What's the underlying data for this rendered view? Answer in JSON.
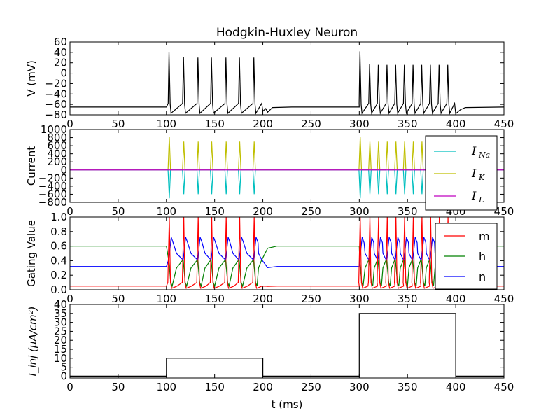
{
  "chart_data": [
    {
      "type": "line",
      "panel": "voltage",
      "title": "Hodgkin-Huxley Neuron",
      "ylabel": "V (mV)",
      "xlabel": "",
      "xlim": [
        0,
        450
      ],
      "ylim": [
        -80,
        60
      ],
      "xticks": [
        "0",
        "50",
        "100",
        "150",
        "200",
        "250",
        "300",
        "350",
        "400",
        "450"
      ],
      "yticks": [
        "60",
        "40",
        "20",
        "0",
        "−20",
        "−40",
        "−60",
        "−80"
      ],
      "grid": false,
      "series": [
        {
          "color": "#000000",
          "resting": -65,
          "spike_peak": 40,
          "after_hyper": -77,
          "spike_times_1": [
            103,
            118,
            133,
            147,
            162,
            176,
            191
          ],
          "spike_peaks_1": [
            40,
            31,
            30,
            30,
            30,
            30,
            30
          ],
          "spike_times_2": [
            301,
            311,
            320,
            329,
            338,
            347,
            356,
            365,
            374,
            383,
            392
          ],
          "spike_peaks_2": [
            42,
            18,
            16,
            16,
            16,
            16,
            16,
            16,
            16,
            16,
            16
          ]
        }
      ]
    },
    {
      "type": "line",
      "panel": "current",
      "ylabel": "Current",
      "xlabel": "",
      "xlim": [
        0,
        450
      ],
      "ylim": [
        -800,
        1000
      ],
      "xticks": [
        "0",
        "50",
        "100",
        "150",
        "200",
        "250",
        "300",
        "350",
        "400",
        "450"
      ],
      "yticks": [
        "1000",
        "800",
        "600",
        "400",
        "200",
        "0",
        "−200",
        "−400",
        "−600",
        "−800"
      ],
      "legend_position": "right",
      "grid": false,
      "series": [
        {
          "name": "I",
          "sub": "Na",
          "color": "#00bfbf",
          "peak_first": -700,
          "peak_rest": -600
        },
        {
          "name": "I",
          "sub": "K",
          "color": "#bfbf00",
          "peak_first": 820,
          "peak_rest": 700
        },
        {
          "name": "I",
          "sub": "L",
          "color": "#bf00bf",
          "value": 0
        }
      ]
    },
    {
      "type": "line",
      "panel": "gating",
      "ylabel": "Gating Value",
      "xlabel": "",
      "xlim": [
        0,
        450
      ],
      "ylim": [
        0,
        1
      ],
      "xticks": [
        "0",
        "50",
        "100",
        "150",
        "200",
        "250",
        "300",
        "350",
        "400",
        "450"
      ],
      "yticks": [
        "1.0",
        "0.8",
        "0.6",
        "0.4",
        "0.2",
        "0.0"
      ],
      "legend_position": "right",
      "grid": false,
      "series": [
        {
          "name": "m",
          "color": "#ff0000",
          "rest": 0.05,
          "peak": 1.0
        },
        {
          "name": "h",
          "color": "#008000",
          "rest": 0.6,
          "low": 0.1
        },
        {
          "name": "n",
          "color": "#0000ff",
          "rest": 0.32,
          "peak": 0.76
        }
      ]
    },
    {
      "type": "line",
      "panel": "injected",
      "ylabel": "I_inj (μA/cm²)",
      "xlabel": "t (ms)",
      "xlim": [
        0,
        450
      ],
      "ylim": [
        -1,
        40
      ],
      "xticks": [
        "0",
        "50",
        "100",
        "150",
        "200",
        "250",
        "300",
        "350",
        "400",
        "450"
      ],
      "yticks": [
        "40",
        "35",
        "30",
        "25",
        "20",
        "15",
        "10",
        "5",
        "0"
      ],
      "grid": false,
      "series": [
        {
          "color": "#000000",
          "x": [
            0,
            100,
            100,
            200,
            200,
            300,
            300,
            400,
            400,
            450
          ],
          "y": [
            0,
            0,
            10,
            10,
            0,
            0,
            35,
            35,
            0,
            0
          ]
        }
      ]
    }
  ]
}
